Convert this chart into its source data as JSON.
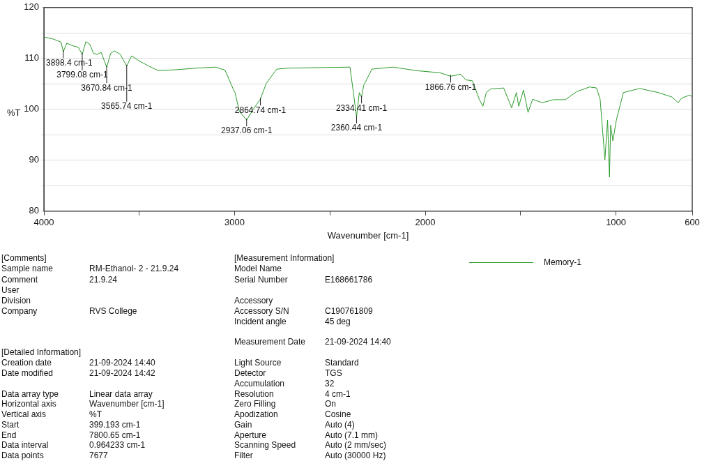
{
  "chart_data": {
    "type": "line",
    "xlabel": "Wavenumber [cm-1]",
    "ylabel": "%T",
    "xlim": [
      4000,
      600
    ],
    "ylim": [
      80,
      120
    ],
    "xticks": [
      4000,
      {
        "value": 3500,
        "label": null
      },
      3000,
      {
        "value": 2500,
        "label": null
      },
      2000,
      {
        "value": 1500,
        "label": null
      },
      1000,
      600
    ],
    "yticks": [
      80,
      {
        "value": 85,
        "label": null
      },
      90,
      {
        "value": 95,
        "label": null
      },
      100,
      {
        "value": 105,
        "label": null
      },
      110,
      {
        "value": 115,
        "label": null
      },
      120
    ],
    "grid": "y",
    "legend": "bottom right",
    "marker": "none",
    "line_style": "solid",
    "series": [
      {
        "name": "Memory-1",
        "color": "#2a9a2a",
        "x": [
          4000,
          3950,
          3910,
          3898.4,
          3880,
          3850,
          3820,
          3799.08,
          3780,
          3760,
          3740,
          3720,
          3700,
          3670.84,
          3650,
          3630,
          3600,
          3565.74,
          3540,
          3500,
          3450,
          3400,
          3300,
          3200,
          3100,
          3050,
          3010,
          2998,
          2975,
          2937.06,
          2901,
          2864.74,
          2852,
          2834,
          2779,
          2718,
          2395,
          2377,
          2360.44,
          2346,
          2334.41,
          2323,
          2280,
          2171,
          2098,
          2048,
          1924,
          1866.76,
          1814,
          1788,
          1753,
          1717,
          1698,
          1680,
          1657,
          1589,
          1547,
          1522,
          1510,
          1485,
          1461,
          1437,
          1388,
          1327,
          1266,
          1205,
          1138,
          1102,
          1083,
          1058,
          1044,
          1034,
          1028,
          1016,
          998,
          961,
          876,
          778,
          705,
          674,
          656,
          614,
          600
        ],
        "values": [
          114.2,
          113.8,
          113.2,
          111.3,
          113.0,
          112.5,
          112.2,
          110.8,
          113.3,
          112.8,
          111.0,
          110.8,
          111.2,
          108.3,
          111.0,
          111.5,
          110.8,
          108.5,
          110.5,
          109.5,
          108.5,
          107.6,
          107.8,
          108.1,
          108.3,
          107.7,
          104.2,
          103.3,
          99.6,
          97.9,
          100.1,
          102.0,
          103.3,
          105.1,
          107.9,
          108.1,
          108.3,
          103.3,
          98.5,
          103.3,
          102.4,
          104.7,
          107.9,
          108.3,
          107.9,
          107.6,
          107.2,
          106.5,
          106.9,
          105.8,
          105.6,
          102.0,
          100.6,
          103.3,
          104.0,
          104.2,
          100.3,
          103.3,
          100.6,
          103.8,
          99.4,
          102.0,
          101.3,
          101.9,
          101.9,
          103.5,
          104.4,
          104.2,
          102.0,
          90.1,
          97.9,
          86.7,
          96.9,
          93.8,
          97.9,
          103.3,
          104.1,
          103.3,
          102.4,
          101.3,
          102.2,
          102.8,
          102.5
        ]
      }
    ],
    "annotations": [
      {
        "text": "3898.4 cm-1",
        "x": 3898.4,
        "y": 111.3
      },
      {
        "text": "3799.08 cm-1",
        "x": 3799.08,
        "y": 110.8
      },
      {
        "text": "3670.84 cm-1",
        "x": 3670.84,
        "y": 108.3
      },
      {
        "text": "3565.74 cm-1",
        "x": 3565.74,
        "y": 108.5
      },
      {
        "text": "2864.74 cm-1",
        "x": 2864.74,
        "y": 102.0
      },
      {
        "text": "2937.06 cm-1",
        "x": 2937.06,
        "y": 97.9
      },
      {
        "text": "2334.41 cm-1",
        "x": 2334.41,
        "y": 102.4
      },
      {
        "text": "2360.44 cm-1",
        "x": 2360.44,
        "y": 98.5
      },
      {
        "text": "1866.76 cm-1",
        "x": 1866.76,
        "y": 106.5
      },
      "[Comments]",
      "Sample name",
      "RM-Ethanol- 2 - 21.9.24",
      "Comment",
      "21.9.24",
      "User",
      "Division",
      "Company",
      "RVS College",
      "[Detailed Information]",
      "Creation date",
      "21-09-2024 14:40",
      "Date modified",
      "21-09-2024 14:42",
      "Data array type",
      "Linear data array",
      "Horizontal axis",
      "Wavenumber [cm-1]",
      "Vertical axis",
      "%T",
      "Start",
      "399.193 cm-1",
      "End",
      "7800.65 cm-1",
      "Data interval",
      "0.964233 cm-1",
      "Data points",
      "7677",
      "[Measurement Information]",
      "Model Name",
      "Serial Number",
      "E168661786",
      "Accessory",
      "Accessory S/N",
      "C190761809",
      "Incident angle",
      "45 deg",
      "Measurement Date",
      "21-09-2024 14:40",
      "Light Source",
      "Standard",
      "Detector",
      "TGS",
      "Accumulation",
      "32",
      "Resolution",
      "4 cm-1",
      "Zero Filling",
      "On",
      "Apodization",
      "Cosine",
      "Gain",
      "Auto (4)",
      "Aperture",
      "Auto (7.1 mm)",
      "Scanning Speed",
      "Auto (2 mm/sec)",
      "Filter",
      "Auto (30000 Hz)"
    ]
  }
}
